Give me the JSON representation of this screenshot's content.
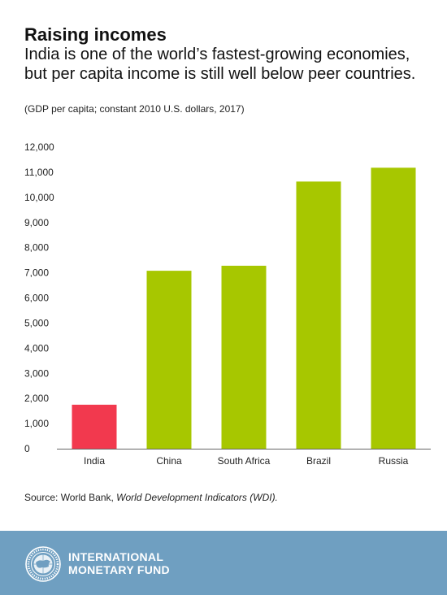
{
  "header": {
    "title": "Raising incomes",
    "subtitle": "India is one of the world’s fastest-growing economies, but per capita income is still well below peer countries.",
    "units": "(GDP per capita; constant 2010 U.S. dollars, 2017)"
  },
  "chart_data": {
    "type": "bar",
    "categories": [
      "India",
      "China",
      "South Africa",
      "Brazil",
      "Russia"
    ],
    "values": [
      1750,
      7080,
      7280,
      10630,
      11180
    ],
    "colors": [
      "#f2394e",
      "#a7c700",
      "#a7c700",
      "#a7c700",
      "#a7c700"
    ],
    "yticks": [
      "0",
      "1,000",
      "2,000",
      "3,000",
      "4,000",
      "5,000",
      "6,000",
      "7,000",
      "8,000",
      "9,000",
      "10,000",
      "11,000",
      "12,000"
    ],
    "ylim": [
      0,
      12000
    ],
    "grid": false,
    "title": "",
    "xlabel": "",
    "ylabel": ""
  },
  "source": {
    "prefix": "Source: World Bank, ",
    "italic": "World Development Indicators (WDI)."
  },
  "footer": {
    "org_line1": "INTERNATIONAL",
    "org_line2": "MONETARY FUND",
    "seal_icon": "imf-seal-icon",
    "background": "#6f9fc1"
  }
}
